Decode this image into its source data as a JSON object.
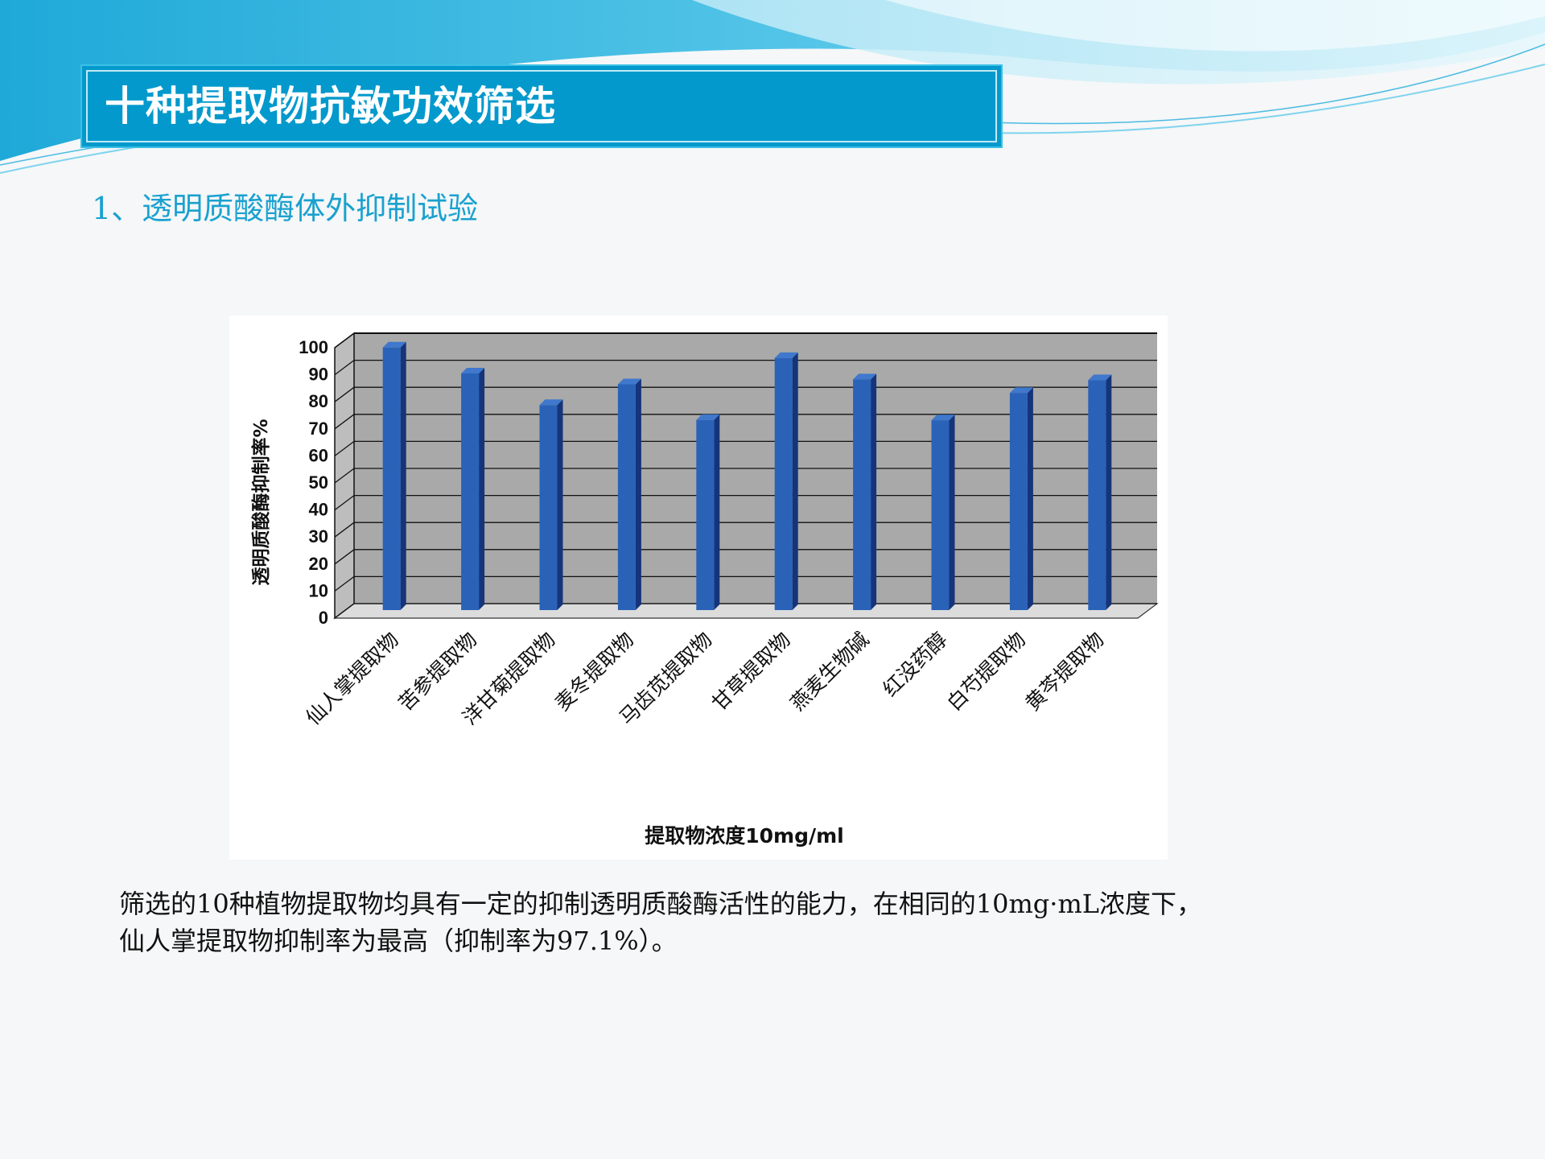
{
  "slide": {
    "title": "十种提取物抗敏功效筛选",
    "subtitle": "1、透明质酸酶体外抑制试验",
    "description": [
      "筛选的10种植物提取物均具有一定的抑制透明质酸酶活性的能力，在相同的10mg·mL浓度下，",
      "仙人掌提取物抑制率为最高（抑制率为97.1%）。"
    ]
  },
  "colors": {
    "title_bar": "#0399cc",
    "subtitle": "#1aa1cf",
    "bar_front": "#2a62b8",
    "bar_side": "#15347a",
    "plot_wall": "#a9a9a9"
  },
  "chart_data": {
    "type": "bar",
    "categories": [
      "仙人掌提取物",
      "苦参提取物",
      "洋甘菊提取物",
      "麦冬提取物",
      "马齿苋提取物",
      "甘草提取物",
      "燕麦生物碱",
      "红没药醇",
      "白芍提取物",
      "黄芩提取物"
    ],
    "values": [
      97.1,
      87.5,
      75.8,
      83.5,
      70.3,
      93.2,
      85.3,
      70.2,
      80.3,
      85.0
    ],
    "xlabel": "提取物浓度10mg/ml",
    "ylabel": "透明质酸酶抑制率%",
    "ylim": [
      0,
      100
    ],
    "yticks": [
      0,
      10,
      20,
      30,
      40,
      50,
      60,
      70,
      80,
      90,
      100
    ],
    "grid": true,
    "legend": "none",
    "style": "3d-column"
  }
}
